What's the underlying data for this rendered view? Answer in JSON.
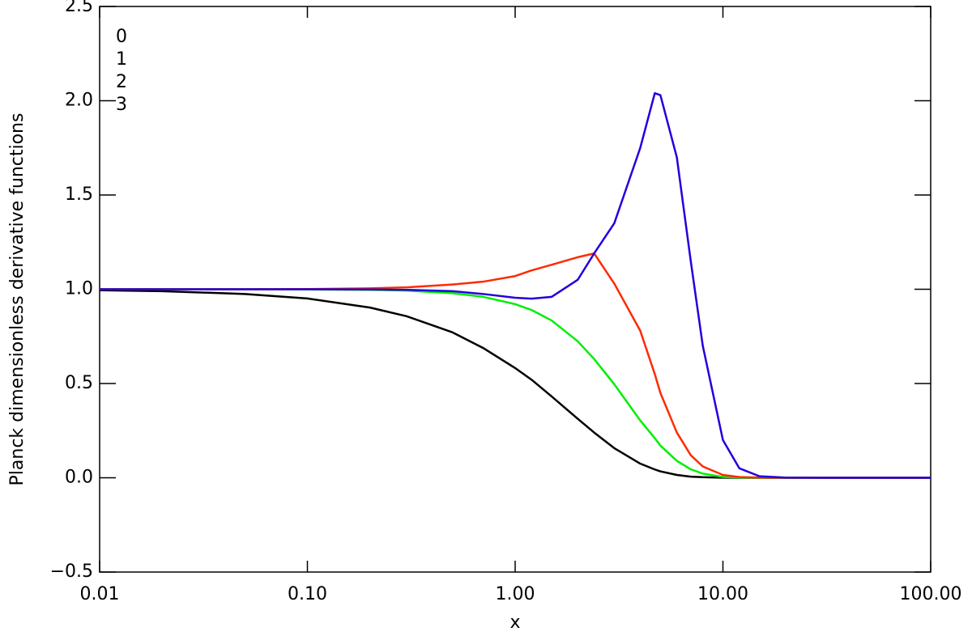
{
  "chart_data": {
    "type": "line",
    "xlabel": "x",
    "ylabel": "Planck dimensionless derivative functions",
    "xscale": "log",
    "xlim": [
      0.01,
      100
    ],
    "ylim": [
      -0.5,
      2.5
    ],
    "xticks": [
      {
        "value": 0.01,
        "label": "0.01"
      },
      {
        "value": 0.1,
        "label": "0.10"
      },
      {
        "value": 1,
        "label": "1.00"
      },
      {
        "value": 10,
        "label": "10.00"
      },
      {
        "value": 100,
        "label": "100.00"
      }
    ],
    "yticks": [
      {
        "value": -0.5,
        "label": "−0.5"
      },
      {
        "value": 0,
        "label": "0.0"
      },
      0.5,
      {
        "value": 1,
        "label": "1.0"
      },
      1.5,
      {
        "value": 2,
        "label": "2.0"
      },
      2.5
    ],
    "legend": "upper left",
    "x": [
      0.01,
      0.02,
      0.05,
      0.1,
      0.2,
      0.3,
      0.5,
      0.7,
      1,
      1.2,
      1.5,
      2,
      2.4,
      3,
      4,
      4.7,
      5,
      6,
      7,
      8,
      10,
      12,
      15,
      20,
      30,
      50,
      100
    ],
    "series": [
      {
        "name": "0",
        "color": "#000000",
        "values": [
          0.995,
          0.99,
          0.975,
          0.951,
          0.903,
          0.857,
          0.771,
          0.689,
          0.582,
          0.52,
          0.431,
          0.313,
          0.24,
          0.157,
          0.075,
          0.044,
          0.034,
          0.015,
          0.006,
          0.003,
          0.0005,
          0,
          0,
          0,
          0,
          0,
          0
        ]
      },
      {
        "name": "1",
        "color": "#00ee00",
        "values": [
          1,
          1,
          1,
          0.999,
          0.997,
          0.993,
          0.979,
          0.96,
          0.921,
          0.89,
          0.834,
          0.724,
          0.63,
          0.496,
          0.304,
          0.21,
          0.171,
          0.09,
          0.045,
          0.022,
          0.0045,
          0.0009,
          0,
          0,
          0,
          0,
          0
        ]
      },
      {
        "name": "2",
        "color": "#ff2a00",
        "values": [
          1,
          1,
          1,
          1.001,
          1.005,
          1.01,
          1.025,
          1.04,
          1.07,
          1.1,
          1.13,
          1.17,
          1.19,
          1.03,
          0.78,
          0.55,
          0.45,
          0.24,
          0.12,
          0.06,
          0.015,
          0.004,
          0.001,
          0,
          0,
          0,
          0
        ]
      },
      {
        "name": "3",
        "color": "#2200dd",
        "values": [
          1,
          1,
          1,
          1,
          0.999,
          0.997,
          0.99,
          0.975,
          0.955,
          0.95,
          0.96,
          1.05,
          1.19,
          1.35,
          1.75,
          2.04,
          2.03,
          1.7,
          1.15,
          0.7,
          0.2,
          0.05,
          0.008,
          0.001,
          0,
          0,
          0
        ]
      }
    ]
  }
}
